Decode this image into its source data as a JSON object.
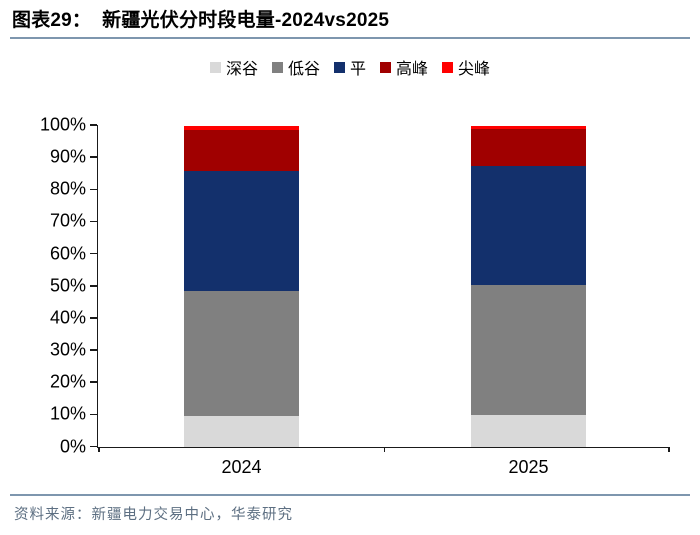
{
  "header": {
    "label": "图表29：",
    "title": "新疆光伏分时段电量-2024vs2025"
  },
  "chart_data": {
    "type": "bar",
    "stacked": true,
    "title": "新疆光伏分时段电量-2024vs2025",
    "categories": [
      "2024",
      "2025"
    ],
    "series": [
      {
        "name": "深谷",
        "color": "#d9d9d9",
        "values": [
          9.5,
          10
        ]
      },
      {
        "name": "低谷",
        "color": "#808080",
        "values": [
          39,
          40.5
        ]
      },
      {
        "name": "平",
        "color": "#13306c",
        "values": [
          37.5,
          37
        ]
      },
      {
        "name": "高峰",
        "color": "#a00000",
        "values": [
          12.5,
          11.5
        ]
      },
      {
        "name": "尖峰",
        "color": "#ff0000",
        "values": [
          1.5,
          1
        ]
      }
    ],
    "ylim": [
      0,
      100
    ],
    "y_tick_step": 10,
    "y_tick_labels": [
      "0%",
      "10%",
      "20%",
      "30%",
      "40%",
      "50%",
      "60%",
      "70%",
      "80%",
      "90%",
      "100%"
    ],
    "unit": "percent",
    "grid": false,
    "legend_position": "top-center"
  },
  "style": {
    "divider_color": "#7e96ae",
    "axis_color": "#1a1a1a",
    "source_color": "#5d6f82"
  },
  "footer": {
    "source": "资料来源：新疆电力交易中心，华泰研究"
  }
}
